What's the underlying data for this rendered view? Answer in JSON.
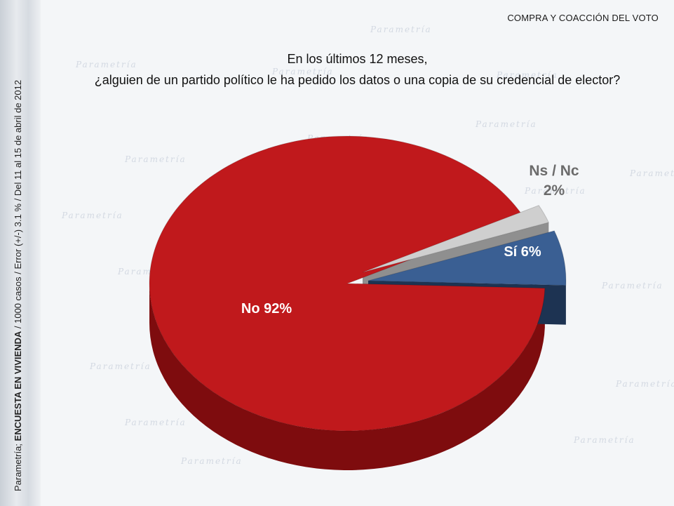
{
  "header": {
    "section_label": "COMPRA Y COACCIÓN DEL VOTO"
  },
  "sidebar": {
    "source_plain": "Parametría; ",
    "source_bold": "ENCUESTA EN VIVIENDA",
    "source_rest": " / 1000 casos / Error (+/-) 3.1 % / Del 11 al 15 de abril de 2012"
  },
  "watermark": {
    "word": "Parametría"
  },
  "chart_data": {
    "type": "pie",
    "title_line1": "En los últimos 12 meses,",
    "title_line2": "¿alguien de un partido político le ha pedido los datos o una copia de su credencial de elector?",
    "slices": [
      {
        "label": "No",
        "value": 92,
        "label_text": "No 92%",
        "color": "#c0191c",
        "side_color": "#7e0c0e"
      },
      {
        "label": "Ns / Nc",
        "value": 2,
        "label_line1": "Ns / Nc",
        "label_line2": "2%",
        "color": "#cfcfcf",
        "side_color": "#8f8f8f"
      },
      {
        "label": "Sí",
        "value": 6,
        "label_text": "Sí 6%",
        "color": "#3a5f93",
        "side_color": "#1d3352"
      }
    ],
    "legend": "none",
    "style": "3d-exploded"
  }
}
